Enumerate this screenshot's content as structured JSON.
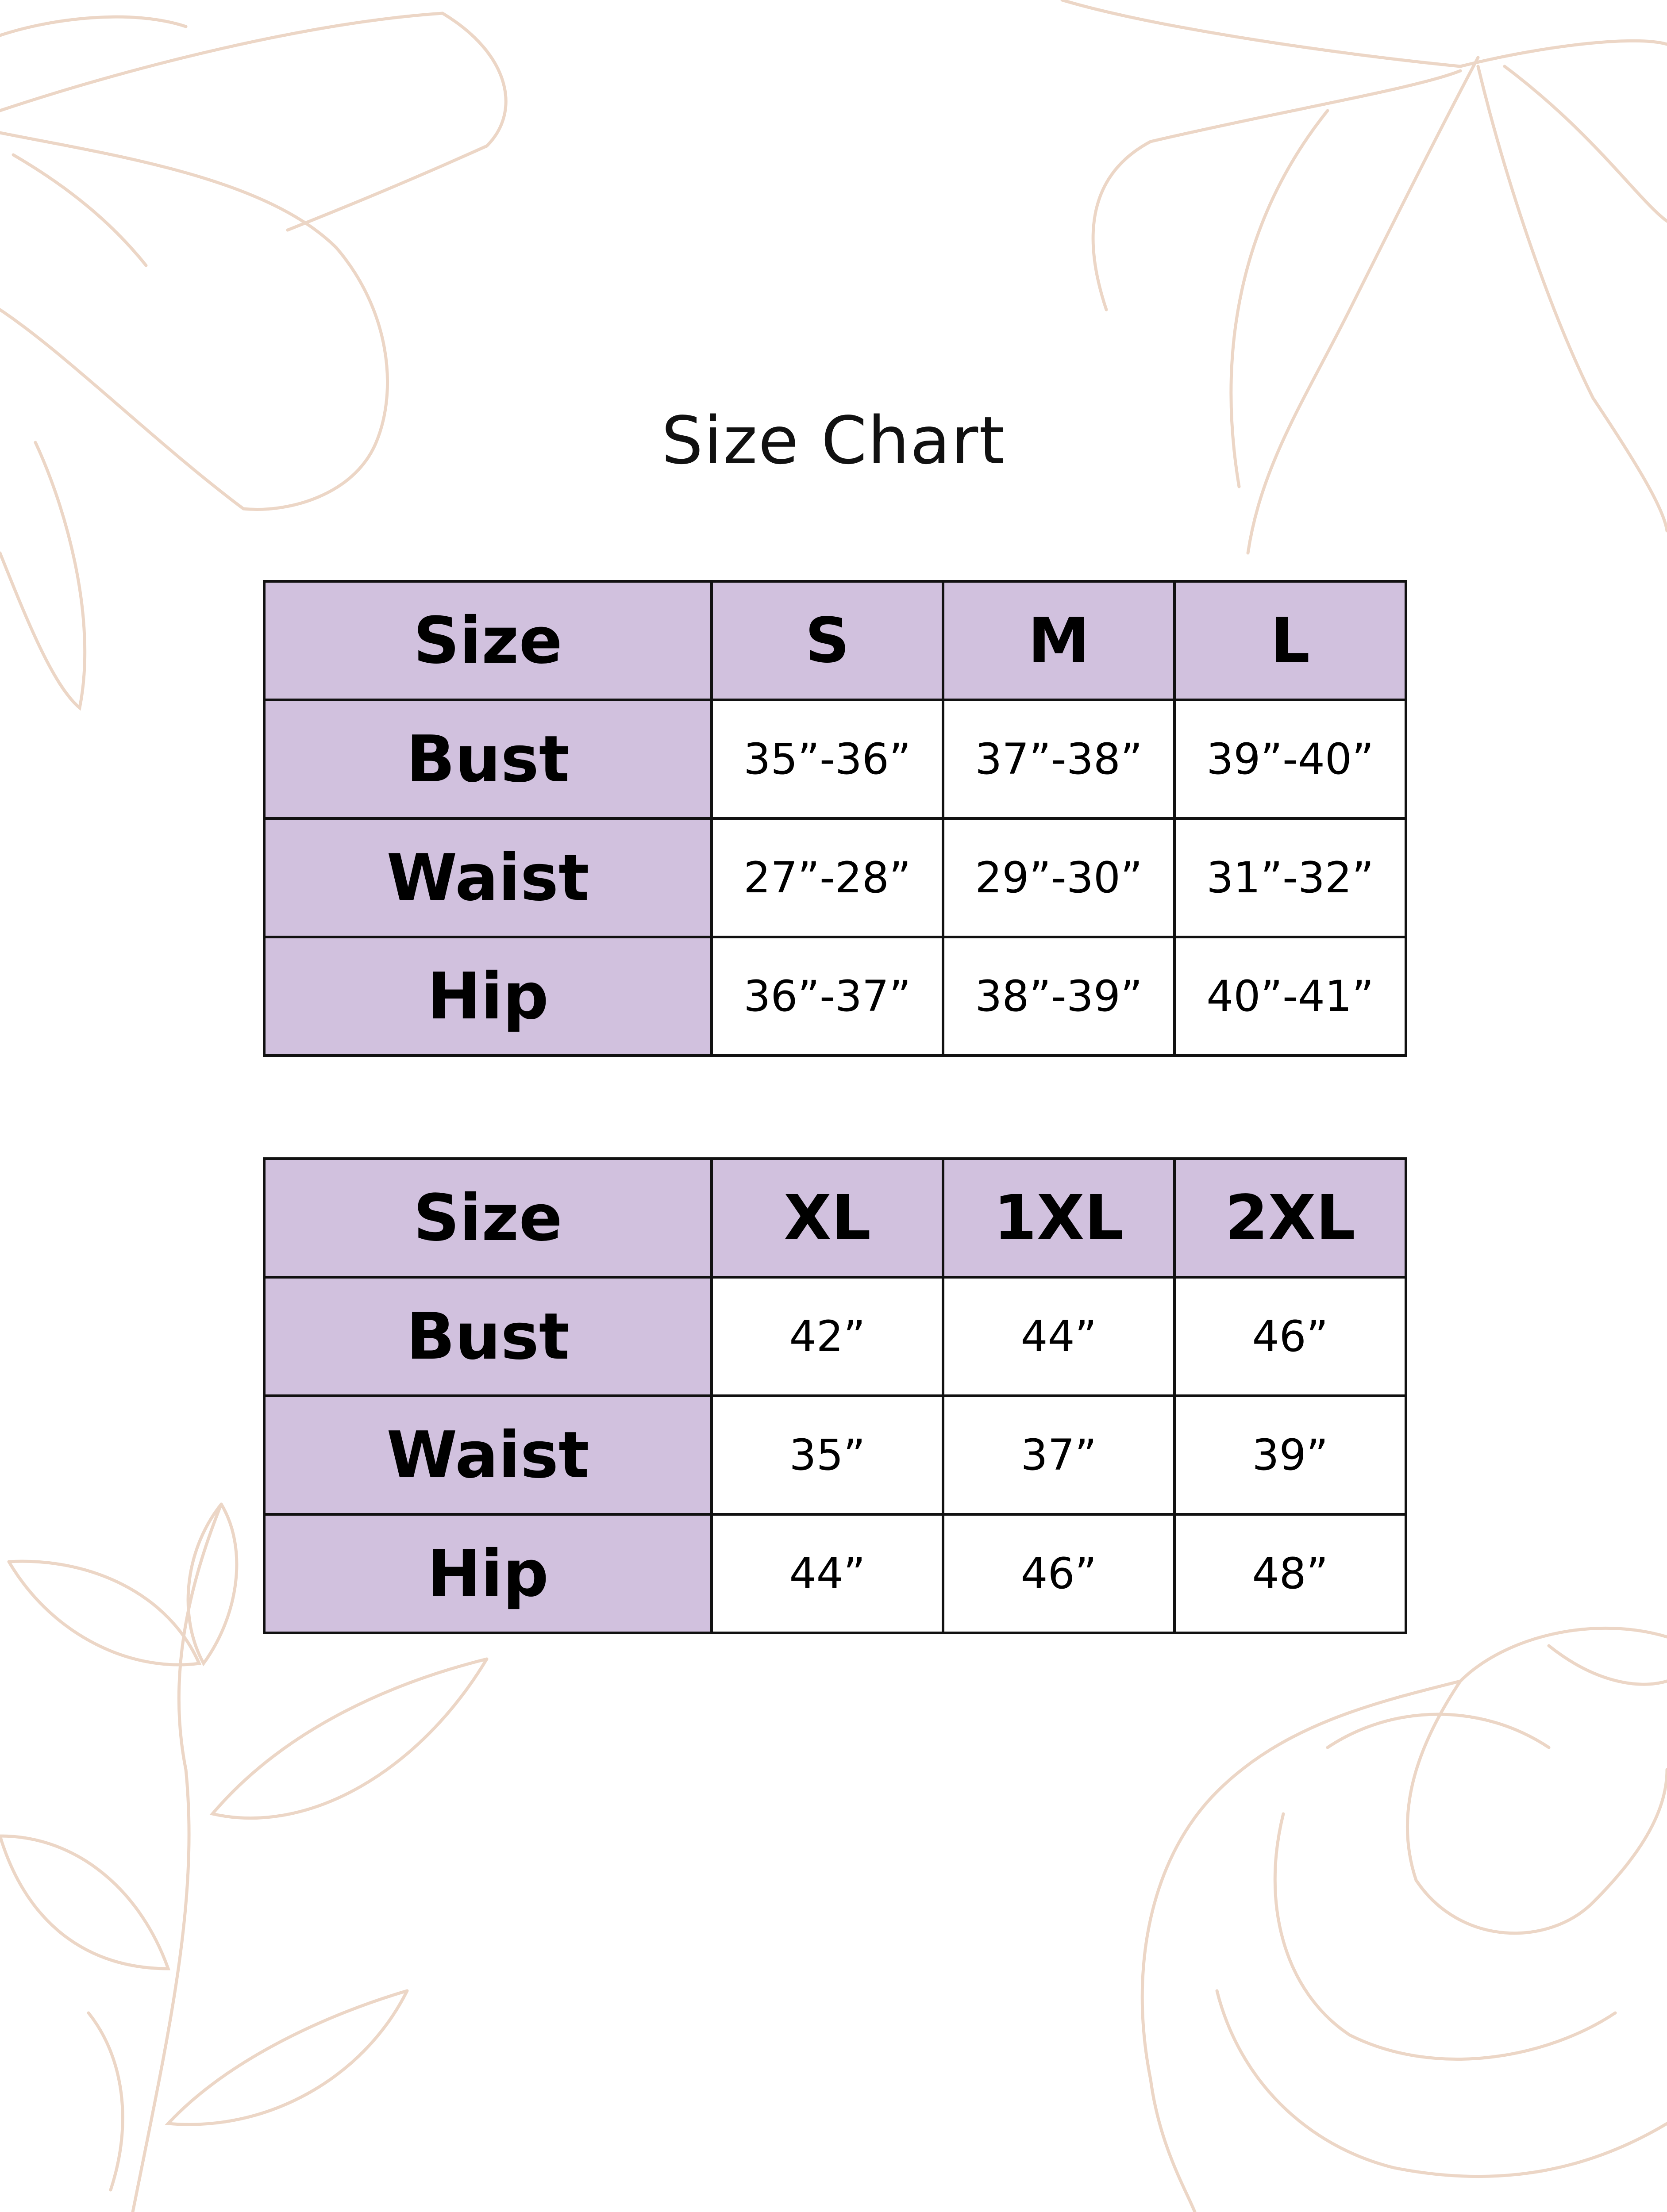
{
  "title": "Size Chart",
  "colors": {
    "header_fill": "#d1c1de",
    "border": "#111111",
    "floral_line": "#ecd6c6"
  },
  "tables": [
    {
      "header": [
        "Size",
        "S",
        "M",
        "L"
      ],
      "rows": [
        {
          "label": "Bust",
          "values": [
            "35”-36”",
            "37”-38”",
            "39”-40”"
          ]
        },
        {
          "label": "Waist",
          "values": [
            "27”-28”",
            "29”-30”",
            "31”-32”"
          ]
        },
        {
          "label": "Hip",
          "values": [
            "36”-37”",
            "38”-39”",
            "40”-41”"
          ]
        }
      ]
    },
    {
      "header": [
        "Size",
        "XL",
        "1XL",
        "2XL"
      ],
      "rows": [
        {
          "label": "Bust",
          "values": [
            "42”",
            "44”",
            "46”"
          ]
        },
        {
          "label": "Waist",
          "values": [
            "35”",
            "37”",
            "39”"
          ]
        },
        {
          "label": "Hip",
          "values": [
            "44”",
            "46”",
            "48”"
          ]
        }
      ]
    }
  ]
}
